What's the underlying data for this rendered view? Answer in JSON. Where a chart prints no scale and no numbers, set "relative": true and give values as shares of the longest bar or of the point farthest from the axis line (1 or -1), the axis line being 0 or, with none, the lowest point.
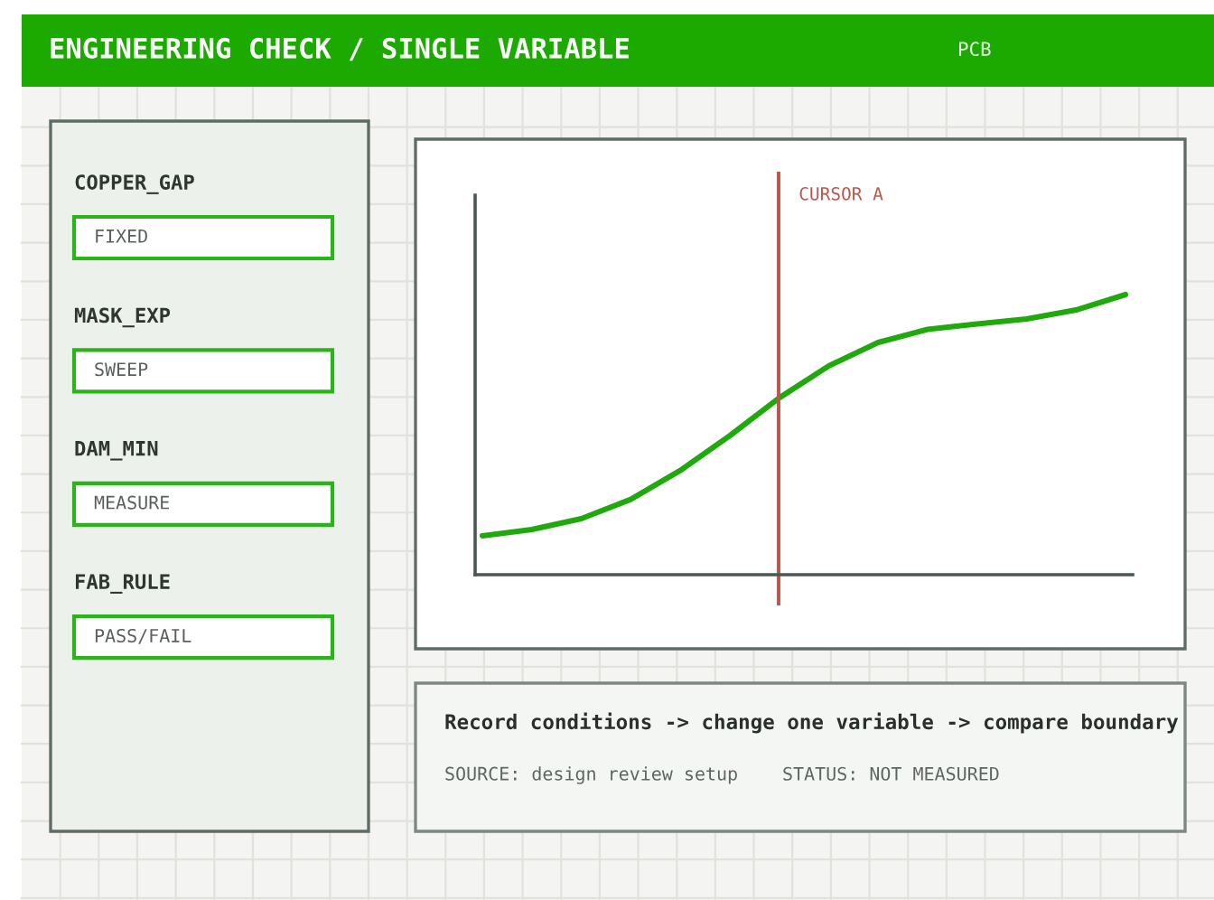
{
  "chart_data": {
    "type": "line",
    "title": "ENGINEERING CHECK / SINGLE VARIABLE",
    "subtitle": "PCB",
    "relative": true,
    "categories": [
      null,
      null,
      null,
      null,
      null,
      null,
      null,
      null,
      null,
      null,
      null,
      null,
      null,
      null
    ],
    "values": [
      0.139,
      0.161,
      0.2,
      0.269,
      0.372,
      0.496,
      0.631,
      0.745,
      0.829,
      0.876,
      0.895,
      0.913,
      0.945,
      1.0
    ],
    "color": "#1fa90c",
    "annotations": [
      "COPPER_GAP",
      "FIXED",
      "MASK_EXP",
      "SWEEP",
      "DAM_MIN",
      "MEASURE",
      "FAB_RULE",
      "PASS/FAIL",
      "CURSOR A",
      "Record conditions -> change one variable -> compare boundary",
      "SOURCE: design review setup",
      "STATUS: NOT MEASURED"
    ]
  }
}
